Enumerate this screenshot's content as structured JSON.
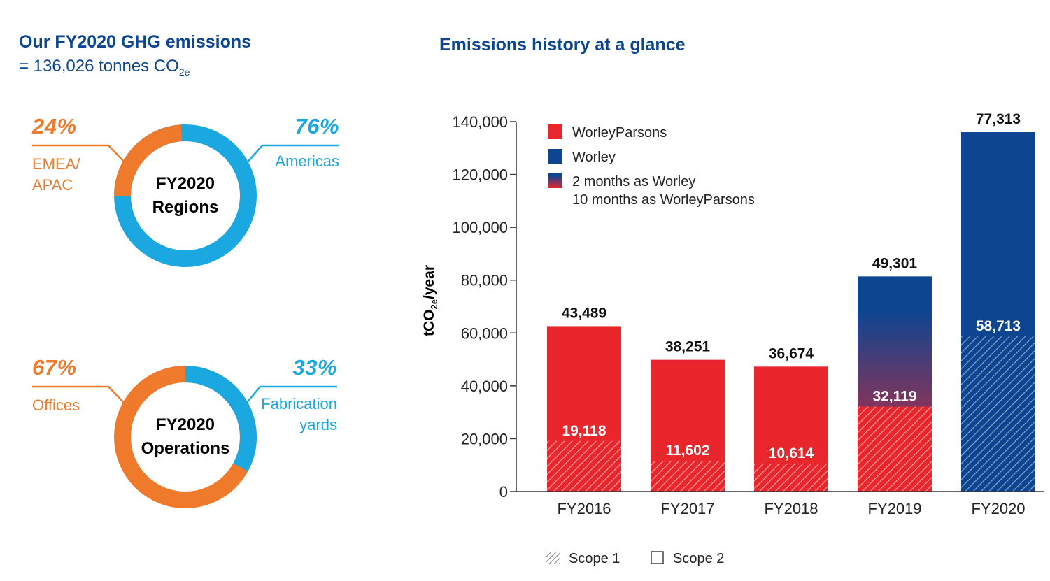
{
  "left": {
    "title": "Our FY2020 GHG emissions",
    "subtitle_prefix": "= 136,026 tonnes CO",
    "subtitle_sub": "2e",
    "regions": {
      "center_line1": "FY2020",
      "center_line2": "Regions",
      "left_pct": "24%",
      "left_label_line1": "EMEA/",
      "left_label_line2": "APAC",
      "right_pct": "76%",
      "right_label": "Americas",
      "left_value": 24,
      "right_value": 76
    },
    "operations": {
      "center_line1": "FY2020",
      "center_line2": "Operations",
      "left_pct": "67%",
      "left_label": "Offices",
      "right_pct": "33%",
      "right_label_line1": "Fabrication",
      "right_label_line2": "yards",
      "left_value": 67,
      "right_value": 33
    },
    "colors": {
      "orange": "#f07a2b",
      "cyan": "#1ba8e1"
    }
  },
  "right": {
    "title": "Emissions history at a glance"
  },
  "chart_data": {
    "type": "bar",
    "stacked": true,
    "categories": [
      "FY2016",
      "FY2017",
      "FY2018",
      "FY2019",
      "FY2020"
    ],
    "ylabel_main": "tCO",
    "ylabel_sub": "2e",
    "ylabel_suffix": "/year",
    "ylim": [
      0,
      140000
    ],
    "yticks": [
      "0",
      "20,000",
      "40,000",
      "60,000",
      "80,000",
      "100,000",
      "120,000",
      "140,000"
    ],
    "ytick_values": [
      0,
      20000,
      40000,
      60000,
      80000,
      100000,
      120000,
      140000
    ],
    "series": [
      {
        "name": "Scope 1",
        "values": [
          19118,
          11602,
          10614,
          32119,
          58713
        ]
      },
      {
        "name": "Scope 2",
        "values": [
          43489,
          38251,
          36674,
          49301,
          77313
        ]
      }
    ],
    "bar_entity": [
      "WorleyParsons",
      "WorleyParsons",
      "WorleyParsons",
      "2 months as Worley / 10 months as WorleyParsons",
      "Worley"
    ],
    "labels_scope1": [
      "19,118",
      "11,602",
      "10,614",
      "32,119",
      "58,713"
    ],
    "labels_scope2": [
      "43,489",
      "38,251",
      "36,674",
      "49,301",
      "77,313"
    ],
    "legend": {
      "position": "top-left",
      "entity_items": [
        "WorleyParsons",
        "Worley",
        "2 months as Worley",
        "10 months as WorleyParsons"
      ],
      "scope_items": [
        "Scope 1",
        "Scope 2"
      ]
    },
    "colors": {
      "worleyparsons": "#e8262c",
      "worley": "#0d4591"
    }
  }
}
